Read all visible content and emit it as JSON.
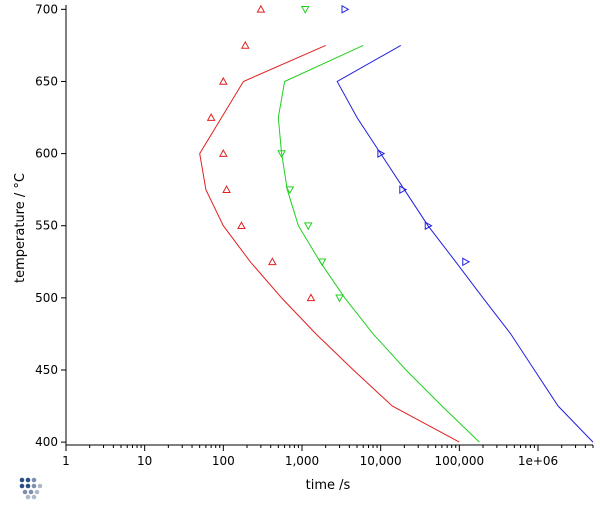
{
  "chart_data": {
    "type": "line",
    "title": "",
    "xlabel": "time /s",
    "ylabel": "temperature / °C",
    "x_scale": "log",
    "xlim": [
      1,
      5000000
    ],
    "ylim": [
      398,
      703
    ],
    "x_ticks": [
      1,
      10,
      100,
      1000,
      10000,
      100000,
      1000000
    ],
    "x_tick_labels": [
      "1",
      "10",
      "100",
      "1,000",
      "10,000",
      "100,000",
      "1e+06"
    ],
    "y_ticks": [
      400,
      450,
      500,
      550,
      600,
      650,
      700
    ],
    "y_tick_labels": [
      "400",
      "450",
      "500",
      "550",
      "600",
      "650",
      "700"
    ],
    "grid": false,
    "legend": false,
    "series": [
      {
        "color": "#e02020",
        "line": [
          [
            2000,
            675
          ],
          [
            180,
            650
          ],
          [
            95,
            625
          ],
          [
            50,
            600
          ],
          [
            60,
            575
          ],
          [
            100,
            550
          ],
          [
            220,
            525
          ],
          [
            550,
            500
          ],
          [
            1500,
            475
          ],
          [
            4500,
            450
          ],
          [
            14000,
            425
          ],
          [
            100000,
            400
          ]
        ],
        "markers": [
          [
            300,
            700
          ],
          [
            190,
            675
          ],
          [
            100,
            650
          ],
          [
            70,
            625
          ],
          [
            100,
            600
          ],
          [
            110,
            575
          ],
          [
            170,
            550
          ],
          [
            420,
            525
          ],
          [
            1300,
            500
          ]
        ],
        "marker": "triangle-up"
      },
      {
        "color": "#20d020",
        "line": [
          [
            6000,
            675
          ],
          [
            600,
            650
          ],
          [
            500,
            625
          ],
          [
            550,
            600
          ],
          [
            650,
            575
          ],
          [
            900,
            550
          ],
          [
            1700,
            525
          ],
          [
            3500,
            500
          ],
          [
            8000,
            475
          ],
          [
            21000,
            450
          ],
          [
            60000,
            425
          ],
          [
            180000,
            400
          ]
        ],
        "markers": [
          [
            1100,
            700
          ],
          [
            550,
            600
          ],
          [
            700,
            575
          ],
          [
            1200,
            550
          ],
          [
            1800,
            525
          ],
          [
            3000,
            500
          ]
        ],
        "marker": "triangle-down"
      },
      {
        "color": "#2020e0",
        "line": [
          [
            18000,
            675
          ],
          [
            2800,
            650
          ],
          [
            5000,
            625
          ],
          [
            10000,
            600
          ],
          [
            20000,
            575
          ],
          [
            40000,
            550
          ],
          [
            90000,
            525
          ],
          [
            200000,
            500
          ],
          [
            450000,
            475
          ],
          [
            900000,
            450
          ],
          [
            1800000,
            425
          ],
          [
            5000000,
            400
          ]
        ],
        "markers": [
          [
            3500,
            700
          ],
          [
            10000,
            600
          ],
          [
            19000,
            575
          ],
          [
            40000,
            550
          ],
          [
            120000,
            525
          ]
        ],
        "marker": "triangle-right"
      }
    ]
  },
  "logo": {
    "name": "dotted-cluster-logo",
    "colors": [
      "#2a4f86",
      "#7c8fae",
      "#aeb8c8"
    ]
  }
}
